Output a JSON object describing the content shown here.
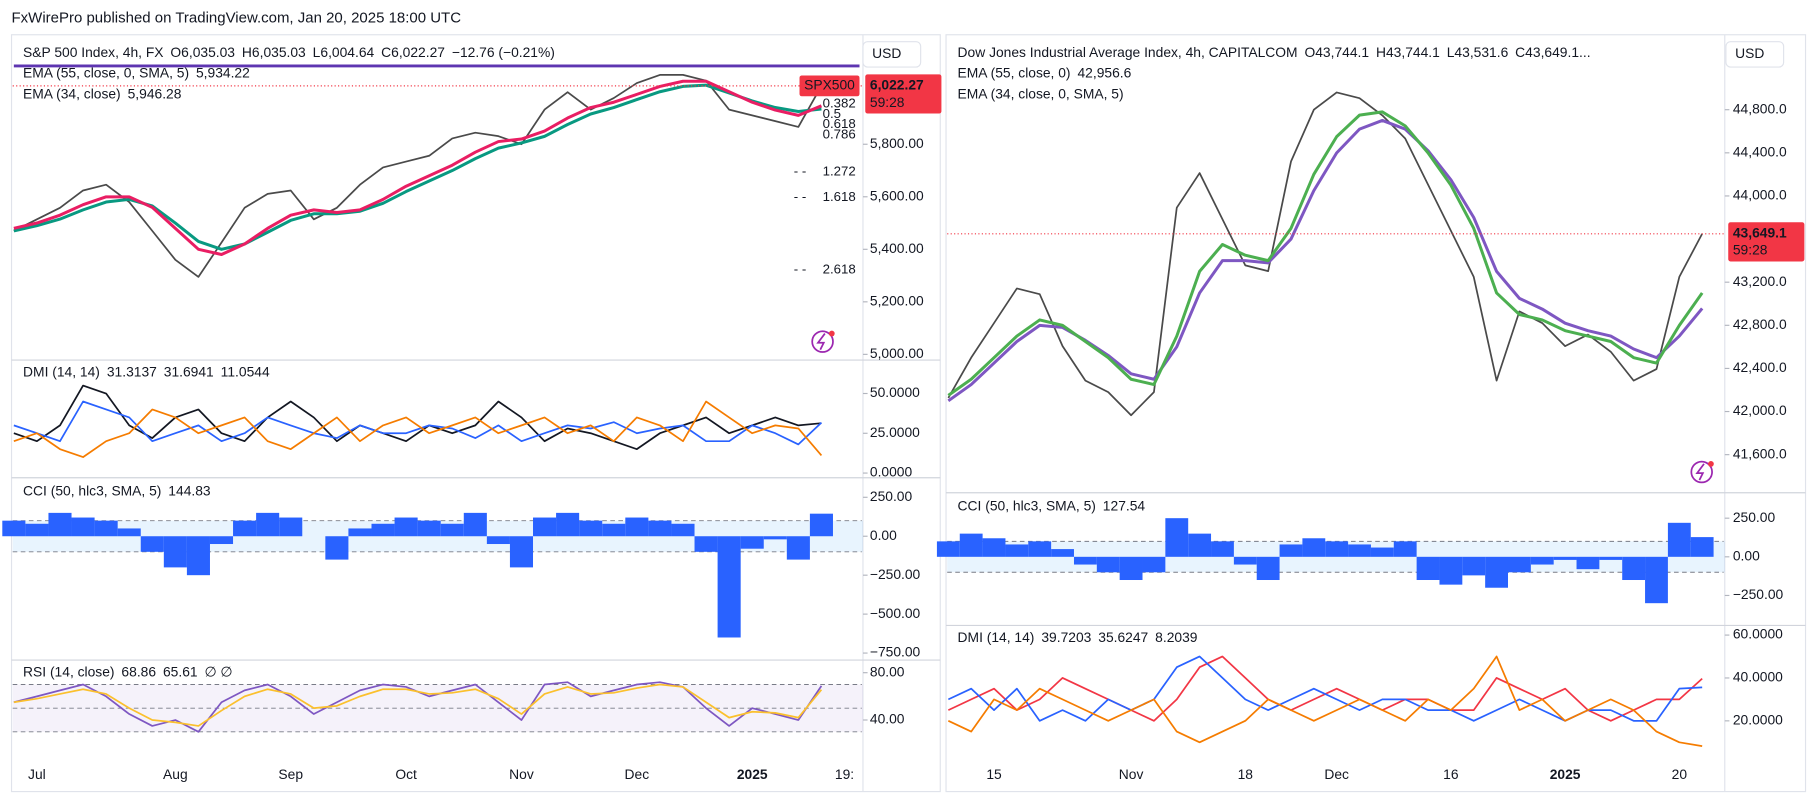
{
  "header": {
    "text": "FxWirePro published on TradingView.com, Jan 20, 2025 18:00 UTC"
  },
  "chart_data": [
    {
      "type": "line",
      "title": "S&P 500 Index, 4h, FX",
      "currency": "USD",
      "ohlc": [
        "O",
        "6,035.03",
        "H",
        "6,035.03",
        "L",
        "6,004.64",
        "C",
        "6,022.27",
        "−12.76 (−0.21%)"
      ],
      "last_label": {
        "symbol": "SPX500",
        "price": "6,022.27",
        "countdown": "59:28"
      },
      "fib_labels": [
        "0.382",
        "0.5",
        "0.618",
        "0.786",
        "1.272",
        "1.618",
        "2.618"
      ],
      "ylim": [
        4987,
        6195
      ],
      "yticks": [
        {
          "value": 5800,
          "label": "5,800.00"
        },
        {
          "value": 5600,
          "label": "5,600.00"
        },
        {
          "value": 5400,
          "label": "5,400.00"
        },
        {
          "value": 5200,
          "label": "5,200.00"
        },
        {
          "value": 5000,
          "label": "5,000.00"
        }
      ],
      "series": [
        {
          "color": "#4a4a4a",
          "values": [
            5470,
            5514,
            5558,
            5624,
            5646,
            5580,
            5470,
            5360,
            5295,
            5426,
            5558,
            5611,
            5624,
            5514,
            5558,
            5646,
            5712,
            5734,
            5756,
            5822,
            5844,
            5831,
            5800,
            5932,
            5998,
            5932,
            5976,
            6033,
            6064,
            6064,
            6042,
            5932,
            5910,
            5888,
            5866,
            6022.27,
            null
          ]
        },
        {
          "name": "EMA (55, close, 0, SMA, 5)",
          "legend_value": "5,934.22",
          "color": "#089981",
          "values": [
            5470,
            5490,
            5515,
            5550,
            5580,
            5590,
            5565,
            5500,
            5430,
            5400,
            5420,
            5465,
            5510,
            5535,
            5535,
            5545,
            5575,
            5620,
            5660,
            5700,
            5745,
            5785,
            5805,
            5830,
            5875,
            5915,
            5940,
            5970,
            6000,
            6020,
            6025,
            5995,
            5965,
            5940,
            5925,
            5934.22,
            null
          ]
        },
        {
          "name": "EMA (34, close)",
          "legend_value": "5,946.28",
          "color": "#e91e63",
          "values": [
            5480,
            5500,
            5530,
            5570,
            5600,
            5600,
            5560,
            5480,
            5400,
            5380,
            5420,
            5480,
            5530,
            5550,
            5540,
            5550,
            5590,
            5640,
            5680,
            5720,
            5770,
            5810,
            5820,
            5850,
            5900,
            5940,
            5960,
            5990,
            6020,
            6040,
            6040,
            6000,
            5960,
            5930,
            5910,
            5946.28,
            null
          ]
        }
      ]
    },
    {
      "type": "line",
      "title": "DMI (14, 14)",
      "ylim": [
        -1.5,
        71
      ],
      "yticks": [
        {
          "value": 50,
          "label": "50.0000"
        },
        {
          "value": 25,
          "label": "25.0000"
        },
        {
          "value": 0,
          "label": "0.0000"
        }
      ],
      "series": [
        {
          "legend_value": "31.3137",
          "color": "#131722",
          "values": [
            25,
            20,
            30,
            55,
            50,
            30,
            22,
            35,
            40,
            25,
            20,
            35,
            45,
            35,
            20,
            30,
            25,
            20,
            30,
            25,
            30,
            45,
            35,
            20,
            28,
            25,
            20,
            15,
            25,
            30,
            35,
            25,
            30,
            35,
            30,
            31.3137,
            null
          ]
        },
        {
          "legend_value": "31.6941",
          "color": "#2962ff",
          "values": [
            30,
            25,
            20,
            45,
            40,
            35,
            20,
            25,
            30,
            20,
            25,
            35,
            30,
            25,
            22,
            30,
            25,
            25,
            30,
            28,
            22,
            30,
            20,
            25,
            30,
            28,
            32,
            25,
            28,
            30,
            20,
            20,
            30,
            25,
            18,
            31.6941,
            null
          ]
        },
        {
          "legend_value": "11.0544",
          "color": "#f57c00",
          "values": [
            20,
            25,
            15,
            10,
            20,
            25,
            40,
            35,
            25,
            30,
            35,
            20,
            15,
            25,
            35,
            20,
            30,
            35,
            25,
            30,
            35,
            25,
            30,
            35,
            25,
            30,
            20,
            35,
            30,
            20,
            45,
            35,
            25,
            30,
            28,
            11.0544,
            null
          ]
        }
      ]
    },
    {
      "type": "bar",
      "title": "CCI (50, hlc3, SMA, 5)",
      "ylim": [
        -780,
        368
      ],
      "bands": [
        -100,
        100
      ],
      "yticks": [
        {
          "value": 250,
          "label": "250.00"
        },
        {
          "value": 0,
          "label": "0.00"
        },
        {
          "value": -250,
          "label": "−250.00"
        },
        {
          "value": -500,
          "label": "−500.00"
        },
        {
          "value": -750,
          "label": "−750.00"
        }
      ],
      "series": [
        {
          "legend_value": "144.83",
          "color": "#2962ff",
          "values": [
            100,
            80,
            150,
            120,
            100,
            50,
            -100,
            -200,
            -250,
            -50,
            100,
            150,
            120,
            0,
            -150,
            50,
            80,
            120,
            100,
            80,
            150,
            -50,
            -200,
            120,
            150,
            100,
            80,
            120,
            100,
            80,
            -100,
            -650,
            -80,
            -20,
            -150,
            144.83,
            null
          ]
        }
      ]
    },
    {
      "type": "line",
      "title": "RSI (14, close)",
      "extra": "∅ ∅",
      "ylim": [
        14.6,
        90.7
      ],
      "bands": [
        30,
        50,
        70
      ],
      "yticks": [
        {
          "value": 80,
          "label": "80.00"
        },
        {
          "value": 40,
          "label": "40.00"
        }
      ],
      "categories": [
        null,
        "Jul",
        null,
        null,
        null,
        null,
        null,
        "Aug",
        null,
        null,
        null,
        null,
        "Sep",
        null,
        null,
        null,
        null,
        "Oct",
        null,
        null,
        null,
        null,
        "Nov",
        null,
        null,
        null,
        null,
        "Dec",
        null,
        null,
        null,
        null,
        "2025",
        null,
        null,
        null,
        "19:"
      ],
      "series": [
        {
          "legend_value": "68.86",
          "color": "#7e57c2",
          "values": [
            55,
            60,
            65,
            70,
            60,
            45,
            35,
            40,
            30,
            55,
            65,
            70,
            60,
            45,
            55,
            65,
            70,
            68,
            60,
            65,
            70,
            55,
            40,
            70,
            72,
            60,
            65,
            70,
            72,
            68,
            50,
            35,
            50,
            45,
            40,
            68.86,
            null
          ]
        },
        {
          "legend_value": "65.61",
          "color": "#fbc02d",
          "values": [
            55,
            58,
            62,
            66,
            62,
            50,
            40,
            38,
            35,
            48,
            60,
            66,
            62,
            50,
            52,
            60,
            66,
            66,
            62,
            63,
            66,
            58,
            45,
            62,
            68,
            62,
            63,
            67,
            70,
            68,
            55,
            42,
            47,
            46,
            42,
            65.61,
            null
          ]
        }
      ]
    },
    {
      "type": "line",
      "title": "Dow Jones Industrial Average Index, 4h, CAPITALCOM",
      "currency": "USD",
      "ohlc": [
        "O",
        "43,744.1",
        "H",
        "43,744.1",
        "L",
        "43,531.6",
        "C",
        "43,649.1..."
      ],
      "last_label": {
        "price": "43,649.1",
        "countdown": "59:28"
      },
      "ylim": [
        41268,
        45442
      ],
      "yticks": [
        {
          "value": 44800,
          "label": "44,800.0"
        },
        {
          "value": 44400,
          "label": "44,400.0"
        },
        {
          "value": 44000,
          "label": "44,000.0"
        },
        {
          "value": 43200,
          "label": "43,200.0"
        },
        {
          "value": 42800,
          "label": "42,800.0"
        },
        {
          "value": 42400,
          "label": "42,400.0"
        },
        {
          "value": 42000,
          "label": "42,000.0"
        },
        {
          "value": 41600,
          "label": "41,600.0"
        }
      ],
      "series": [
        {
          "color": "#4a4a4a",
          "values": [
            42126,
            42500,
            42821,
            43142,
            43089,
            42607,
            42287,
            42180,
            41966,
            42180,
            43891,
            44212,
            43784,
            43356,
            43303,
            44319,
            44800,
            44960,
            44907,
            44747,
            44533,
            44105,
            43677,
            43249,
            42287,
            42929,
            42821,
            42607,
            42714,
            42554,
            42287,
            42394,
            43249,
            43649.1
          ]
        },
        {
          "name": "EMA (55, close, 0)",
          "legend_value": "42,956.6",
          "color": "#7e57c2",
          "values": [
            42100,
            42250,
            42450,
            42650,
            42800,
            42780,
            42660,
            42520,
            42350,
            42300,
            42600,
            43100,
            43400,
            43400,
            43380,
            43600,
            44050,
            44400,
            44620,
            44700,
            44620,
            44420,
            44150,
            43800,
            43300,
            43050,
            42950,
            42820,
            42750,
            42700,
            42580,
            42500,
            42700,
            42956.6
          ]
        },
        {
          "name": "EMA (34, close, 0, SMA, 5)",
          "color": "#4caf50",
          "values": [
            42150,
            42300,
            42500,
            42700,
            42850,
            42800,
            42650,
            42500,
            42300,
            42250,
            42700,
            43300,
            43550,
            43450,
            43400,
            43700,
            44200,
            44550,
            44750,
            44780,
            44650,
            44400,
            44100,
            43700,
            43100,
            42900,
            42850,
            42750,
            42700,
            42650,
            42500,
            42450,
            42800,
            43100
          ]
        }
      ]
    },
    {
      "type": "bar",
      "title": "CCI (50, hlc3, SMA, 5)",
      "ylim": [
        -429,
        407
      ],
      "bands": [
        -100,
        100
      ],
      "yticks": [
        {
          "value": 250,
          "label": "250.00"
        },
        {
          "value": 0,
          "label": "0.00"
        },
        {
          "value": -250,
          "label": "−250.00"
        }
      ],
      "series": [
        {
          "legend_value": "127.54",
          "color": "#2962ff",
          "values": [
            100,
            150,
            120,
            80,
            100,
            50,
            -50,
            -100,
            -150,
            -100,
            250,
            150,
            100,
            -50,
            -150,
            80,
            120,
            100,
            80,
            60,
            100,
            -150,
            -180,
            -120,
            -200,
            -100,
            -50,
            -20,
            -80,
            -20,
            -150,
            -300,
            220,
            127.54
          ]
        }
      ]
    },
    {
      "type": "line",
      "title": "DMI (14, 14)",
      "ylim": [
        3.7,
        64.5
      ],
      "yticks": [
        {
          "value": 60,
          "label": "60.0000"
        },
        {
          "value": 40,
          "label": "40.0000"
        },
        {
          "value": 20,
          "label": "20.0000"
        }
      ],
      "categories": [
        null,
        null,
        "15",
        null,
        null,
        null,
        null,
        null,
        "Nov",
        null,
        null,
        null,
        null,
        "18",
        null,
        null,
        null,
        "Dec",
        null,
        null,
        null,
        null,
        "16",
        null,
        null,
        null,
        null,
        "2025",
        null,
        null,
        null,
        null,
        "20",
        null
      ],
      "series": [
        {
          "legend_value": "39.7203",
          "color": "#f23645",
          "values": [
            25,
            30,
            35,
            25,
            30,
            40,
            35,
            30,
            25,
            20,
            30,
            45,
            50,
            40,
            30,
            25,
            30,
            35,
            30,
            25,
            30,
            30,
            25,
            25,
            40,
            35,
            30,
            35,
            25,
            20,
            25,
            30,
            30,
            39.7203
          ]
        },
        {
          "legend_value": "35.6247",
          "color": "#2962ff",
          "values": [
            30,
            35,
            25,
            35,
            20,
            25,
            20,
            30,
            25,
            30,
            45,
            50,
            40,
            30,
            25,
            30,
            35,
            30,
            25,
            30,
            30,
            25,
            25,
            20,
            25,
            30,
            25,
            20,
            25,
            25,
            20,
            20,
            35,
            35.6247
          ]
        },
        {
          "legend_value": "8.2039",
          "color": "#f57c00",
          "values": [
            20,
            15,
            30,
            25,
            35,
            30,
            25,
            20,
            25,
            30,
            15,
            10,
            15,
            20,
            30,
            25,
            20,
            25,
            30,
            25,
            20,
            30,
            25,
            35,
            50,
            25,
            30,
            20,
            25,
            30,
            25,
            15,
            10,
            8.2039
          ]
        }
      ]
    }
  ]
}
